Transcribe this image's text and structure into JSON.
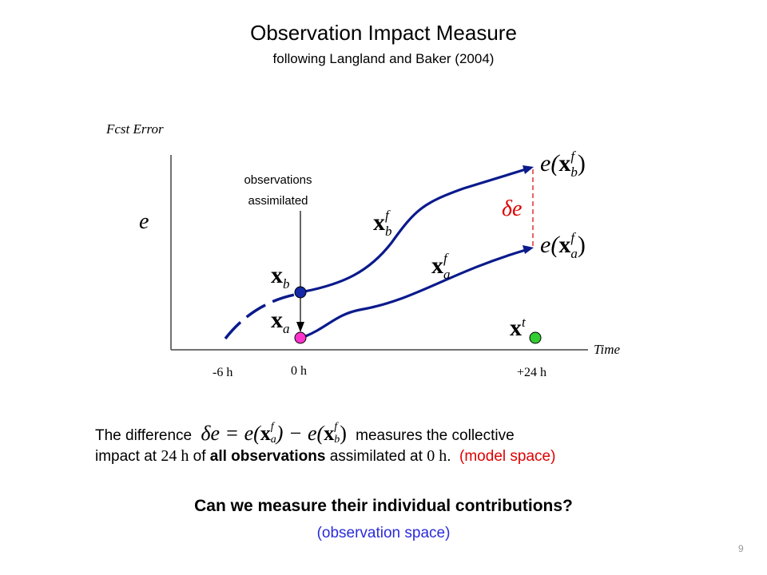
{
  "title": "Observation Impact Measure",
  "subtitle": "following Langland and Baker (2004)",
  "diagram": {
    "y_axis_label": "Fcst Error",
    "x_axis_label": "Time",
    "y_symbol": "e",
    "observations_line1": "observations",
    "observations_line2": "assimilated",
    "tick_minus6": "-6 h",
    "tick_0": "0 h",
    "tick_24": "+24 h",
    "label_xb": "x",
    "label_xb_sub": "b",
    "label_xa": "x",
    "label_xa_sub": "a",
    "label_xbf": "x",
    "label_xbf_sup": "f",
    "label_xbf_sub": "b",
    "label_xaf": "x",
    "label_xaf_sup": "f",
    "label_xaf_sub": "a",
    "label_xt": "x",
    "label_xt_sup": "t",
    "label_e_xbf_pre": "e(",
    "label_e_xbf_x": "x",
    "label_e_xbf_sup": "f",
    "label_e_xbf_sub": "b",
    "label_e_xbf_post": ")",
    "label_e_xaf_pre": "e(",
    "label_e_xaf_x": "x",
    "label_e_xaf_sup": "f",
    "label_e_xaf_sub": "a",
    "label_e_xaf_post": ")",
    "label_delta_e": "δe",
    "colors": {
      "trajectory": "#0a1a8c",
      "xb_dot": "#1428a8",
      "xa_dot": "#ff33cc",
      "xt_dot": "#33cc33",
      "delta": "#e83030"
    }
  },
  "sentence": {
    "part1": "The difference",
    "eq_lhs": "δe = e(",
    "eq_x1": "x",
    "eq_x1_sup": "f",
    "eq_x1_sub": "a",
    "eq_mid": ") − e(",
    "eq_x2": "x",
    "eq_x2_sup": "f",
    "eq_x2_sub": "b",
    "eq_rhs": ")",
    "part2": "measures the collective",
    "line2_a": "impact at ",
    "line2_24h": "24 h",
    "line2_b": " of ",
    "line2_bold": "all observations",
    "line2_c": " assimilated at ",
    "line2_0h": "0 h",
    "line2_d": ".",
    "model_space": "(model space)"
  },
  "question": "Can we measure their individual contributions?",
  "observation_space": "(observation space)",
  "page_number": "9"
}
